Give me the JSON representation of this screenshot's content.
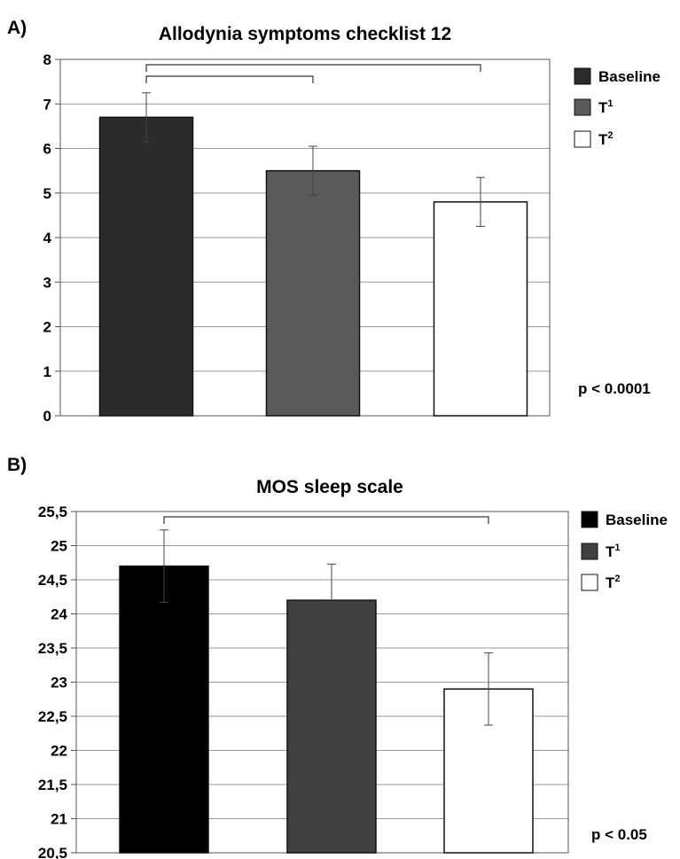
{
  "panels": {
    "a_label": "A)",
    "b_label": "B)"
  },
  "chart_data": [
    {
      "type": "bar",
      "title": "Allodynia symptoms checklist 12",
      "xlabel": "",
      "ylabel": "",
      "ylim": [
        0,
        8
      ],
      "yticks": [
        "0",
        "1",
        "2",
        "3",
        "4",
        "5",
        "6",
        "7",
        "8"
      ],
      "grid": true,
      "legend_position": "right",
      "series": [
        {
          "name": "Baseline",
          "sup": "",
          "value": 6.7,
          "err": 0.55,
          "color": "#2b2b2b"
        },
        {
          "name": "T",
          "sup": "1",
          "value": 5.5,
          "err": 0.55,
          "color": "#5a5a5a"
        },
        {
          "name": "T",
          "sup": "2",
          "value": 4.8,
          "err": 0.55,
          "color": "#ffffff"
        }
      ],
      "brackets": [
        [
          0,
          1
        ],
        [
          0,
          2
        ]
      ],
      "annotation": "p < 0.0001"
    },
    {
      "type": "bar",
      "title": "MOS sleep scale",
      "xlabel": "",
      "ylabel": "",
      "ylim": [
        20.5,
        25.5
      ],
      "yticks": [
        "20,5",
        "21",
        "21,5",
        "22",
        "22,5",
        "23",
        "23,5",
        "24",
        "24,5",
        "25",
        "25,5"
      ],
      "grid": true,
      "legend_position": "right",
      "series": [
        {
          "name": "Baseline",
          "sup": "",
          "value": 24.7,
          "err": 0.53,
          "color": "#000000"
        },
        {
          "name": "T",
          "sup": "1",
          "value": 24.2,
          "err": 0.53,
          "color": "#404040"
        },
        {
          "name": "T",
          "sup": "2",
          "value": 22.9,
          "err": 0.53,
          "color": "#ffffff"
        }
      ],
      "brackets": [
        [
          0,
          2
        ]
      ],
      "annotation": "p < 0.05"
    }
  ]
}
